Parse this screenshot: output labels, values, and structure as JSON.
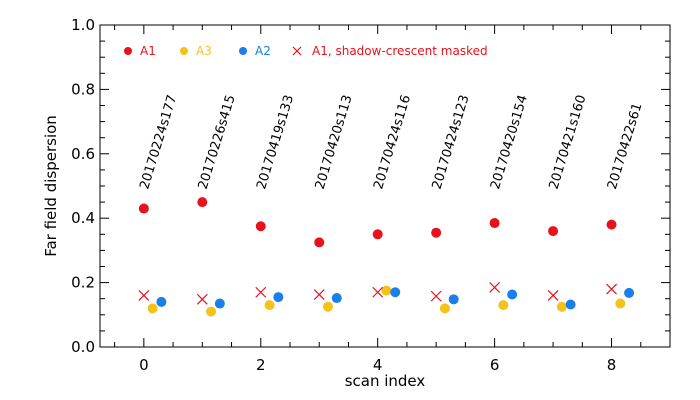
{
  "chart_data": {
    "type": "scatter",
    "xlabel": "scan index",
    "ylabel": "Far field dispersion",
    "xlim": [
      -0.75,
      9.0
    ],
    "ylim": [
      0.0,
      1.0
    ],
    "x_ticks": [
      0,
      2,
      4,
      6,
      8
    ],
    "x_tick_labels": [
      "0",
      "2",
      "4",
      "6",
      "8"
    ],
    "y_ticks": [
      0.0,
      0.2,
      0.4,
      0.6,
      0.8,
      1.0
    ],
    "y_tick_labels": [
      "0.0",
      "0.2",
      "0.4",
      "0.6",
      "0.8",
      "1.0"
    ],
    "grid": false,
    "legend_position": "top-left",
    "scan_labels": [
      "20170224s177",
      "20170226s415",
      "20170419s133",
      "20170420s113",
      "20170424s116",
      "20170424s123",
      "20170420s154",
      "20170421s160",
      "20170422s61"
    ],
    "series": [
      {
        "name": "A1",
        "marker": "circle",
        "color": "#e8121c",
        "x": [
          0,
          1,
          2,
          3,
          4,
          5,
          6,
          7,
          8
        ],
        "y": [
          0.43,
          0.45,
          0.375,
          0.325,
          0.35,
          0.355,
          0.385,
          0.36,
          0.38
        ]
      },
      {
        "name": "A3",
        "marker": "circle",
        "color": "#f5c21b",
        "x": [
          0.15,
          1.15,
          2.15,
          3.15,
          4.15,
          5.15,
          6.15,
          7.15,
          8.15
        ],
        "y": [
          0.12,
          0.11,
          0.13,
          0.125,
          0.175,
          0.12,
          0.13,
          0.125,
          0.135
        ]
      },
      {
        "name": "A2",
        "marker": "circle",
        "color": "#1a7fe8",
        "x": [
          0.3,
          1.3,
          2.3,
          3.3,
          4.3,
          5.3,
          6.3,
          7.3,
          8.3
        ],
        "y": [
          0.14,
          0.135,
          0.155,
          0.152,
          0.17,
          0.148,
          0.163,
          0.132,
          0.168
        ]
      },
      {
        "name": "A1, shadow-crescent masked",
        "marker": "x",
        "color": "#e8121c",
        "x": [
          0,
          1,
          2,
          3,
          4,
          5,
          6,
          7,
          8
        ],
        "y": [
          0.16,
          0.148,
          0.17,
          0.163,
          0.17,
          0.158,
          0.185,
          0.16,
          0.18
        ]
      }
    ]
  }
}
